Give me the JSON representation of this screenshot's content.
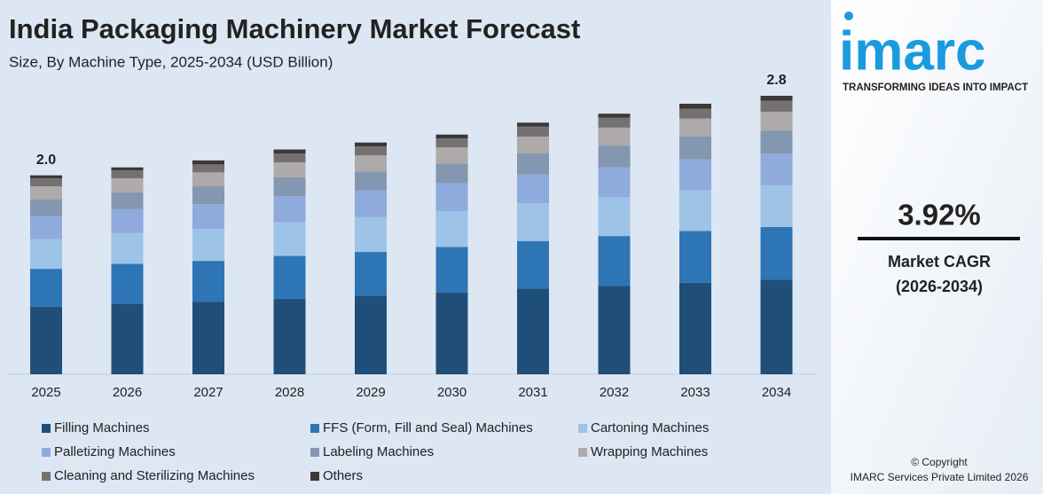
{
  "chart_data": {
    "type": "stacked_bar",
    "title": "India Packaging Machinery Market Forecast",
    "subtitle": "Size, By Machine Type, 2025-2034 (USD Billion)",
    "categories": [
      "2025",
      "2026",
      "2027",
      "2028",
      "2029",
      "2030",
      "2031",
      "2032",
      "2033",
      "2034"
    ],
    "series": [
      {
        "name": "Filling Machines",
        "color": "#1f4e79",
        "values": [
          0.68,
          0.71,
          0.73,
          0.76,
          0.79,
          0.82,
          0.86,
          0.89,
          0.92,
          0.95
        ]
      },
      {
        "name": "FFS (Form, Fill and Seal) Machines",
        "color": "#2e75b6",
        "values": [
          0.38,
          0.4,
          0.41,
          0.43,
          0.44,
          0.46,
          0.48,
          0.5,
          0.52,
          0.53
        ]
      },
      {
        "name": "Cartoning Machines",
        "color": "#9dc3e6",
        "values": [
          0.3,
          0.31,
          0.32,
          0.34,
          0.35,
          0.36,
          0.38,
          0.39,
          0.41,
          0.42
        ]
      },
      {
        "name": "Palletizing Machines",
        "color": "#8faadc",
        "values": [
          0.23,
          0.24,
          0.25,
          0.26,
          0.27,
          0.28,
          0.29,
          0.3,
          0.31,
          0.32
        ]
      },
      {
        "name": "Labeling Machines",
        "color": "#8497b0",
        "values": [
          0.17,
          0.17,
          0.18,
          0.19,
          0.19,
          0.2,
          0.21,
          0.22,
          0.23,
          0.23
        ]
      },
      {
        "name": "Wrapping Machines",
        "color": "#aeaaaa",
        "values": [
          0.13,
          0.14,
          0.14,
          0.15,
          0.16,
          0.16,
          0.17,
          0.18,
          0.18,
          0.19
        ]
      },
      {
        "name": "Cleaning and Sterilizing Machines",
        "color": "#767171",
        "values": [
          0.08,
          0.08,
          0.08,
          0.09,
          0.09,
          0.09,
          0.1,
          0.1,
          0.1,
          0.11
        ]
      },
      {
        "name": "Others",
        "color": "#3b3838",
        "values": [
          0.03,
          0.03,
          0.04,
          0.04,
          0.04,
          0.04,
          0.04,
          0.04,
          0.05,
          0.05
        ]
      }
    ],
    "totals": [
      2.0,
      null,
      null,
      null,
      null,
      null,
      null,
      null,
      null,
      2.8
    ],
    "value_labels": [
      "2.0",
      null,
      null,
      null,
      null,
      null,
      null,
      null,
      null,
      "2.8"
    ]
  },
  "sidebar": {
    "logo": "imarc",
    "tagline": "TRANSFORMING IDEAS INTO IMPACT",
    "cagr": "3.92%",
    "cagr_label": "Market CAGR",
    "cagr_period": "(2026-2034)",
    "copyright": "© Copyright",
    "company": "IMARC Services Private Limited 2026"
  }
}
